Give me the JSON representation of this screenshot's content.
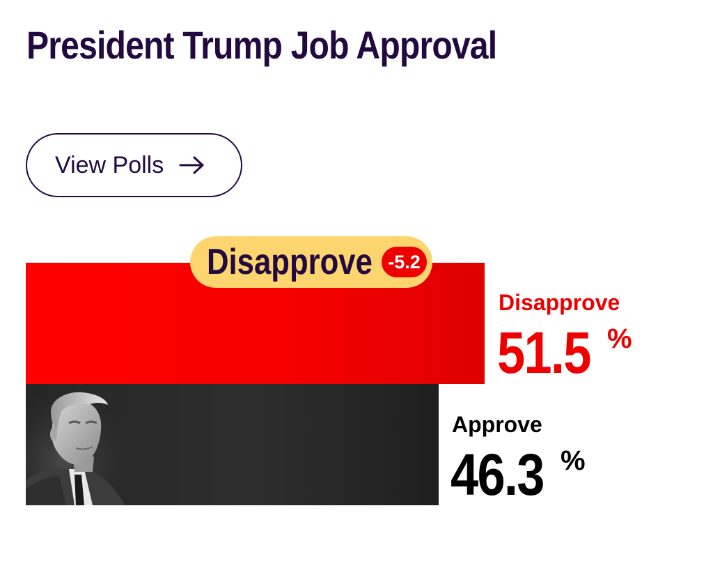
{
  "page": {
    "title": "President Trump Job Approval"
  },
  "actions": {
    "view_polls_label": "View Polls",
    "view_polls_icon": "arrow-right-icon"
  },
  "badge": {
    "label": "Disapprove",
    "spread": "-5.2"
  },
  "colors": {
    "title": "#22093f",
    "disapprove": "#ee0000",
    "approve": "#262626",
    "badge_bg": "#fcd56f"
  },
  "chart_data": {
    "type": "bar",
    "orientation": "horizontal",
    "title": "President Trump Job Approval",
    "categories": [
      "Disapprove",
      "Approve"
    ],
    "values": [
      51.5,
      46.3
    ],
    "unit": "%",
    "series": [
      {
        "name": "Disapprove",
        "value": 51.5,
        "value_label": "51.5",
        "unit": "%",
        "color": "#ee0000"
      },
      {
        "name": "Approve",
        "value": 46.3,
        "value_label": "46.3",
        "unit": "%",
        "color": "#262626"
      }
    ],
    "spread": -5.2,
    "leader": "Disapprove",
    "image": "grayscale portrait of President Trump inside the Approve bar"
  }
}
